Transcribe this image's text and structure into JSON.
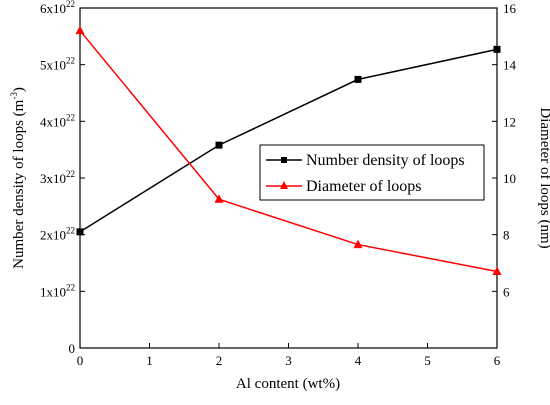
{
  "chart_data": {
    "type": "line",
    "xlabel": "Al content (wt%)",
    "ylabel_left": {
      "main": "Number density of loops (m",
      "sup": "-3",
      "end": ")"
    },
    "ylabel_right": "Diameter of loops (nm)",
    "xlim": [
      0,
      6
    ],
    "xticks": [
      0,
      1,
      2,
      3,
      4,
      5,
      6
    ],
    "ylim_left": [
      0,
      6e+22
    ],
    "yticks_left": [
      {
        "value": 0,
        "base": "0",
        "sup": ""
      },
      {
        "value": 1e+22,
        "base": "1x10",
        "sup": "22"
      },
      {
        "value": 2e+22,
        "base": "2x10",
        "sup": "22"
      },
      {
        "value": 3e+22,
        "base": "3x10",
        "sup": "22"
      },
      {
        "value": 4e+22,
        "base": "4x10",
        "sup": "22"
      },
      {
        "value": 5e+22,
        "base": "5x10",
        "sup": "22"
      },
      {
        "value": 6e+22,
        "base": "6x10",
        "sup": "22"
      }
    ],
    "ylim_right": [
      4,
      16
    ],
    "yticks_right": [
      6,
      8,
      10,
      12,
      14,
      16
    ],
    "grid": false,
    "legend_position": "center-right",
    "series": [
      {
        "name": "Number density of loops",
        "axis": "left",
        "color": "#000000",
        "marker": "square",
        "x": [
          0,
          2,
          4,
          6
        ],
        "y": [
          2.05e+22,
          3.58e+22,
          4.74e+22,
          5.27e+22
        ]
      },
      {
        "name": "Diameter of loops",
        "axis": "right",
        "color": "#ff0000",
        "marker": "triangle",
        "x": [
          0,
          2,
          4,
          6
        ],
        "y": [
          15.2,
          9.25,
          7.65,
          6.7
        ]
      }
    ]
  }
}
